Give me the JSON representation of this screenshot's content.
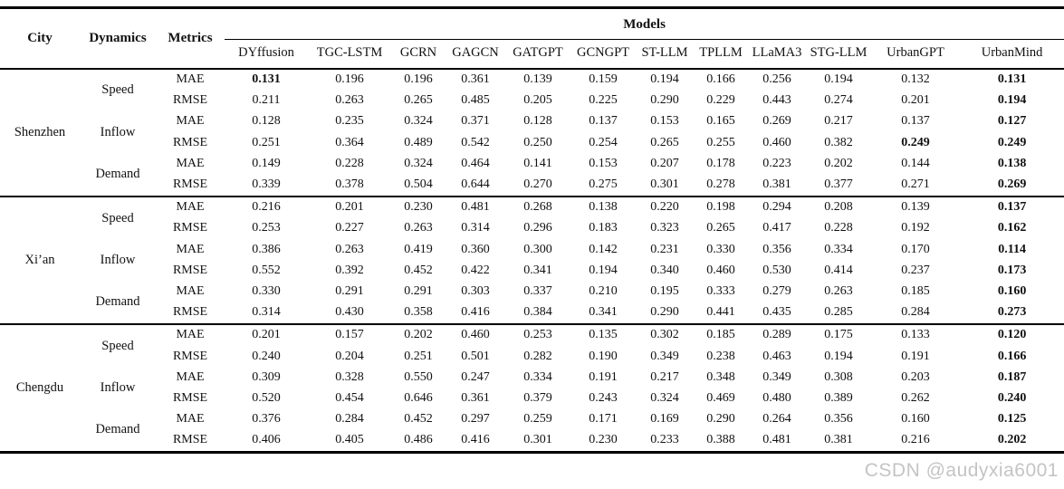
{
  "table": {
    "col_headers": [
      "City",
      "Dynamics",
      "Metrics"
    ],
    "models_header": "Models",
    "models": [
      "DYffusion",
      "TGC-LSTM",
      "GCRN",
      "GAGCN",
      "GATGPT",
      "GCNGPT",
      "ST-LLM",
      "TPLLM",
      "LLaMA3",
      "STG-LLM",
      "UrbanGPT",
      "UrbanMind"
    ],
    "groups": [
      {
        "city": "Shenzhen",
        "dynamics": [
          {
            "name": "Speed",
            "rows": [
              {
                "metric": "MAE",
                "values": [
                  "0.131",
                  "0.196",
                  "0.196",
                  "0.361",
                  "0.139",
                  "0.159",
                  "0.194",
                  "0.166",
                  "0.256",
                  "0.194",
                  "0.132",
                  "0.131"
                ],
                "bold": [
                  0,
                  11
                ]
              },
              {
                "metric": "RMSE",
                "values": [
                  "0.211",
                  "0.263",
                  "0.265",
                  "0.485",
                  "0.205",
                  "0.225",
                  "0.290",
                  "0.229",
                  "0.443",
                  "0.274",
                  "0.201",
                  "0.194"
                ],
                "bold": [
                  11
                ]
              }
            ]
          },
          {
            "name": "Inflow",
            "rows": [
              {
                "metric": "MAE",
                "values": [
                  "0.128",
                  "0.235",
                  "0.324",
                  "0.371",
                  "0.128",
                  "0.137",
                  "0.153",
                  "0.165",
                  "0.269",
                  "0.217",
                  "0.137",
                  "0.127"
                ],
                "bold": [
                  11
                ]
              },
              {
                "metric": "RMSE",
                "values": [
                  "0.251",
                  "0.364",
                  "0.489",
                  "0.542",
                  "0.250",
                  "0.254",
                  "0.265",
                  "0.255",
                  "0.460",
                  "0.382",
                  "0.249",
                  "0.249"
                ],
                "bold": [
                  10,
                  11
                ]
              }
            ]
          },
          {
            "name": "Demand",
            "rows": [
              {
                "metric": "MAE",
                "values": [
                  "0.149",
                  "0.228",
                  "0.324",
                  "0.464",
                  "0.141",
                  "0.153",
                  "0.207",
                  "0.178",
                  "0.223",
                  "0.202",
                  "0.144",
                  "0.138"
                ],
                "bold": [
                  11
                ]
              },
              {
                "metric": "RMSE",
                "values": [
                  "0.339",
                  "0.378",
                  "0.504",
                  "0.644",
                  "0.270",
                  "0.275",
                  "0.301",
                  "0.278",
                  "0.381",
                  "0.377",
                  "0.271",
                  "0.269"
                ],
                "bold": [
                  11
                ]
              }
            ]
          }
        ]
      },
      {
        "city": "Xi’an",
        "dynamics": [
          {
            "name": "Speed",
            "rows": [
              {
                "metric": "MAE",
                "values": [
                  "0.216",
                  "0.201",
                  "0.230",
                  "0.481",
                  "0.268",
                  "0.138",
                  "0.220",
                  "0.198",
                  "0.294",
                  "0.208",
                  "0.139",
                  "0.137"
                ],
                "bold": [
                  11
                ]
              },
              {
                "metric": "RMSE",
                "values": [
                  "0.253",
                  "0.227",
                  "0.263",
                  "0.314",
                  "0.296",
                  "0.183",
                  "0.323",
                  "0.265",
                  "0.417",
                  "0.228",
                  "0.192",
                  "0.162"
                ],
                "bold": [
                  11
                ]
              }
            ]
          },
          {
            "name": "Inflow",
            "rows": [
              {
                "metric": "MAE",
                "values": [
                  "0.386",
                  "0.263",
                  "0.419",
                  "0.360",
                  "0.300",
                  "0.142",
                  "0.231",
                  "0.330",
                  "0.356",
                  "0.334",
                  "0.170",
                  "0.114"
                ],
                "bold": [
                  11
                ]
              },
              {
                "metric": "RMSE",
                "values": [
                  "0.552",
                  "0.392",
                  "0.452",
                  "0.422",
                  "0.341",
                  "0.194",
                  "0.340",
                  "0.460",
                  "0.530",
                  "0.414",
                  "0.237",
                  "0.173"
                ],
                "bold": [
                  11
                ]
              }
            ]
          },
          {
            "name": "Demand",
            "rows": [
              {
                "metric": "MAE",
                "values": [
                  "0.330",
                  "0.291",
                  "0.291",
                  "0.303",
                  "0.337",
                  "0.210",
                  "0.195",
                  "0.333",
                  "0.279",
                  "0.263",
                  "0.185",
                  "0.160"
                ],
                "bold": [
                  11
                ]
              },
              {
                "metric": "RMSE",
                "values": [
                  "0.314",
                  "0.430",
                  "0.358",
                  "0.416",
                  "0.384",
                  "0.341",
                  "0.290",
                  "0.441",
                  "0.435",
                  "0.285",
                  "0.284",
                  "0.273"
                ],
                "bold": [
                  11
                ]
              }
            ]
          }
        ]
      },
      {
        "city": "Chengdu",
        "dynamics": [
          {
            "name": "Speed",
            "rows": [
              {
                "metric": "MAE",
                "values": [
                  "0.201",
                  "0.157",
                  "0.202",
                  "0.460",
                  "0.253",
                  "0.135",
                  "0.302",
                  "0.185",
                  "0.289",
                  "0.175",
                  "0.133",
                  "0.120"
                ],
                "bold": [
                  11
                ]
              },
              {
                "metric": "RMSE",
                "values": [
                  "0.240",
                  "0.204",
                  "0.251",
                  "0.501",
                  "0.282",
                  "0.190",
                  "0.349",
                  "0.238",
                  "0.463",
                  "0.194",
                  "0.191",
                  "0.166"
                ],
                "bold": [
                  11
                ]
              }
            ]
          },
          {
            "name": "Inflow",
            "rows": [
              {
                "metric": "MAE",
                "values": [
                  "0.309",
                  "0.328",
                  "0.550",
                  "0.247",
                  "0.334",
                  "0.191",
                  "0.217",
                  "0.348",
                  "0.349",
                  "0.308",
                  "0.203",
                  "0.187"
                ],
                "bold": [
                  11
                ]
              },
              {
                "metric": "RMSE",
                "values": [
                  "0.520",
                  "0.454",
                  "0.646",
                  "0.361",
                  "0.379",
                  "0.243",
                  "0.324",
                  "0.469",
                  "0.480",
                  "0.389",
                  "0.262",
                  "0.240"
                ],
                "bold": [
                  11
                ]
              }
            ]
          },
          {
            "name": "Demand",
            "rows": [
              {
                "metric": "MAE",
                "values": [
                  "0.376",
                  "0.284",
                  "0.452",
                  "0.297",
                  "0.259",
                  "0.171",
                  "0.169",
                  "0.290",
                  "0.264",
                  "0.356",
                  "0.160",
                  "0.125"
                ],
                "bold": [
                  11
                ]
              },
              {
                "metric": "RMSE",
                "values": [
                  "0.406",
                  "0.405",
                  "0.486",
                  "0.416",
                  "0.301",
                  "0.230",
                  "0.233",
                  "0.388",
                  "0.481",
                  "0.381",
                  "0.216",
                  "0.202"
                ],
                "bold": [
                  11
                ]
              }
            ]
          }
        ]
      }
    ]
  },
  "watermark": "CSDN @audyxia6001"
}
